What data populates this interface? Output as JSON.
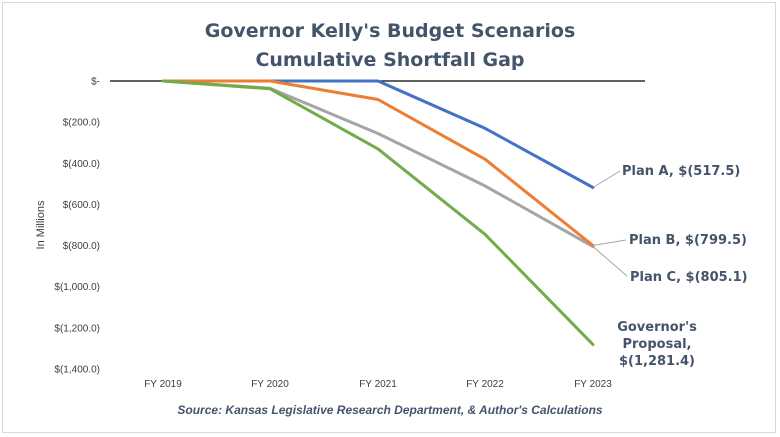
{
  "chart_data": {
    "type": "line",
    "title_lines": [
      "Governor Kelly's Budget Scenarios",
      "Cumulative Shortfall Gap"
    ],
    "ylabel": "In Millions",
    "categories": [
      "FY 2019",
      "FY 2020",
      "FY 2021",
      "FY 2022",
      "FY 2023"
    ],
    "ylim": [
      -1400,
      0
    ],
    "y_ticks": [
      0,
      -200,
      -400,
      -600,
      -800,
      -1000,
      -1200,
      -1400
    ],
    "y_tick_labels": [
      "$-",
      "$(200.0)",
      "$(400.0)",
      "$(600.0)",
      "$(800.0)",
      "$(1,000.0)",
      "$(1,200.0)",
      "$(1,400.0)"
    ],
    "series": [
      {
        "key": "plan_a",
        "color": "#4472c4",
        "values": [
          0,
          0,
          0,
          -230,
          -517.5
        ]
      },
      {
        "key": "plan_b",
        "color": "#ed7d31",
        "values": [
          0,
          0,
          -90,
          -380,
          -799.5
        ]
      },
      {
        "key": "plan_c",
        "color": "#a5a5a5",
        "values": [
          0,
          -35,
          -255,
          -510,
          -805.1
        ]
      },
      {
        "key": "governor",
        "color": "#70ad47",
        "values": [
          0,
          -38,
          -330,
          -745,
          -1281.4
        ]
      }
    ],
    "annotations": [
      {
        "series": "plan_a",
        "lines": [
          "Plan A,  $(517.5)"
        ]
      },
      {
        "series": "plan_b",
        "lines": [
          "Plan B,  $(799.5)"
        ]
      },
      {
        "series": "plan_c",
        "lines": [
          "Plan C,  $(805.1)"
        ]
      },
      {
        "series": "governor",
        "lines": [
          "Governor's",
          "Proposal,",
          "$(1,281.4)"
        ]
      }
    ],
    "source": "Source: Kansas Legislative Research Department, & Author's Calculations",
    "grid": false
  }
}
